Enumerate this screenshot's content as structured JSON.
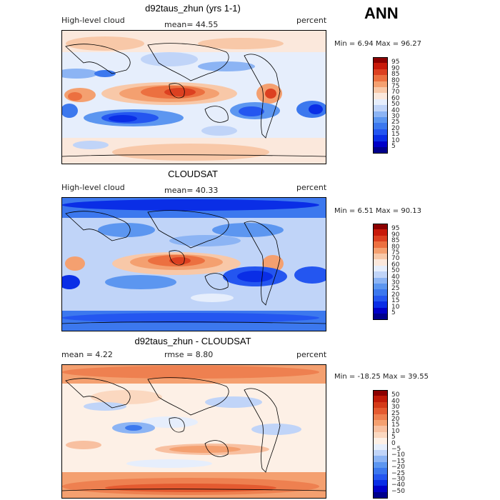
{
  "season": "ANN",
  "panels": [
    {
      "title": "d92taus_zhun (yrs 1-1)",
      "left_label": "High-level cloud",
      "stat1": "mean=  44.55",
      "stat2": "",
      "units": "percent",
      "minmax": "Min =    6.94  Max =   96.27",
      "levels": [
        "5",
        "10",
        "15",
        "20",
        "25",
        "30",
        "40",
        "50",
        "60",
        "70",
        "75",
        "80",
        "85",
        "90",
        "95"
      ]
    },
    {
      "title": "CLOUDSAT",
      "left_label": "High-level cloud",
      "stat1": "mean=  40.33",
      "stat2": "",
      "units": "percent",
      "minmax": "Min =    6.51  Max =   90.13",
      "levels": [
        "5",
        "10",
        "15",
        "20",
        "25",
        "30",
        "40",
        "50",
        "60",
        "70",
        "75",
        "80",
        "85",
        "90",
        "95"
      ]
    },
    {
      "title": "d92taus_zhun - CLOUDSAT",
      "left_label": "mean =     4.22",
      "stat1": "rmse =    8.80",
      "stat2": "",
      "units": "percent",
      "minmax": "Min =  -18.25  Max =   39.55",
      "levels": [
        "−50",
        "−40",
        "−30",
        "−25",
        "−20",
        "−15",
        "−10",
        "−5",
        "0",
        "5",
        "10",
        "15",
        "20",
        "25",
        "30",
        "40",
        "50"
      ]
    }
  ],
  "colors": {
    "scale16": [
      "#00008c",
      "#0000c8",
      "#0a2ee6",
      "#2456f0",
      "#3c78ee",
      "#5c96f0",
      "#8cb4f4",
      "#c0d4f8",
      "#e6eefc",
      "#fbe8dc",
      "#f8c8a8",
      "#f4a070",
      "#ec7040",
      "#dc4020",
      "#c81a0a",
      "#8c0000"
    ],
    "scale18": [
      "#00008c",
      "#0000c8",
      "#0a2ee6",
      "#2456f0",
      "#3c78ee",
      "#5c96f0",
      "#8cb4f4",
      "#c0d4f8",
      "#e6eefc",
      "#fdf0e6",
      "#fbd8c0",
      "#f8c0a0",
      "#f4a070",
      "#ee8050",
      "#e45a30",
      "#d43a18",
      "#c01a08",
      "#8c0000"
    ]
  }
}
